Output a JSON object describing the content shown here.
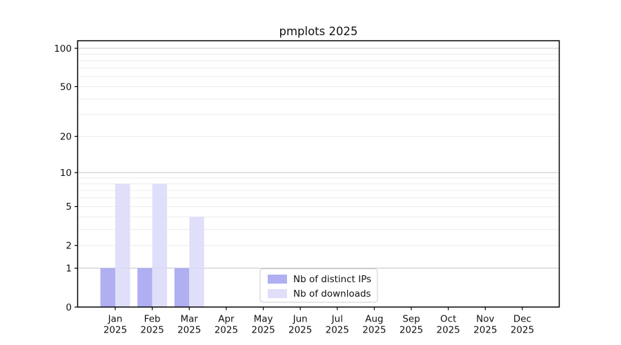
{
  "chart_data": {
    "type": "bar",
    "title": "pmplots 2025",
    "categories": [
      "Jan 2025",
      "Feb 2025",
      "Mar 2025",
      "Apr 2025",
      "May 2025",
      "Jun 2025",
      "Jul 2025",
      "Aug 2025",
      "Sep 2025",
      "Oct 2025",
      "Nov 2025",
      "Dec 2025"
    ],
    "series": [
      {
        "name": "Nb of distinct IPs",
        "color": "#a6a6f1",
        "values": [
          1,
          1,
          1,
          0,
          0,
          0,
          0,
          0,
          0,
          0,
          0,
          0
        ]
      },
      {
        "name": "Nb of downloads",
        "color": "#dbdbf8",
        "values": [
          8,
          8,
          4,
          0,
          0,
          0,
          0,
          0,
          0,
          0,
          0,
          0
        ]
      }
    ],
    "y_scale": "log1p",
    "y_ticks": [
      0,
      1,
      2,
      5,
      10,
      20,
      50,
      100
    ],
    "y_tick_labels": [
      "0",
      "1",
      "2",
      "5",
      "10",
      "20",
      "50",
      "100"
    ],
    "major_gridlines": [
      1,
      10,
      100
    ],
    "minor_gridlines": [
      2,
      3,
      4,
      5,
      6,
      7,
      8,
      9,
      20,
      30,
      40,
      50,
      60,
      70,
      80,
      90
    ],
    "ylim": [
      0,
      115
    ],
    "grid": "horizontal",
    "legend_position": "lower center",
    "xlabel": "",
    "ylabel": ""
  },
  "colors": {
    "spine": "#000000",
    "gridline_major": "#c3c3c3",
    "gridline_minor": "#ebebeb",
    "text": "#111111",
    "legend_border": "#cccccc"
  }
}
